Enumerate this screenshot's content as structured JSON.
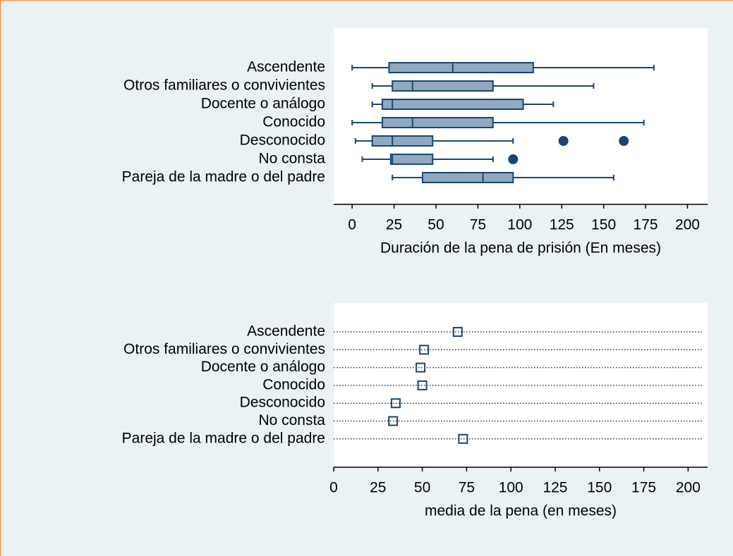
{
  "chart_data": [
    {
      "type": "boxplot",
      "categories": [
        "Ascendente",
        "Otros familiares o convivientes",
        "Docente o análogo",
        "Conocido",
        "Desconocido",
        "No consta",
        "Pareja de la madre o del padre"
      ],
      "boxes": [
        {
          "min": 0,
          "q1": 22,
          "median": 60,
          "q3": 108,
          "max": 180,
          "outliers": []
        },
        {
          "min": 12,
          "q1": 24,
          "median": 36,
          "q3": 84,
          "max": 144,
          "outliers": []
        },
        {
          "min": 12,
          "q1": 18,
          "median": 24,
          "q3": 102,
          "max": 120,
          "outliers": []
        },
        {
          "min": 0,
          "q1": 18,
          "median": 36,
          "q3": 84,
          "max": 174,
          "outliers": []
        },
        {
          "min": 2,
          "q1": 12,
          "median": 24,
          "q3": 48,
          "max": 96,
          "outliers": [
            126,
            162
          ]
        },
        {
          "min": 6,
          "q1": 23,
          "median": 24,
          "q3": 48,
          "max": 84,
          "outliers": [
            96
          ]
        },
        {
          "min": 24,
          "q1": 42,
          "median": 78,
          "q3": 96,
          "max": 156,
          "outliers": []
        }
      ],
      "color": "#90a8c0",
      "xlabel": "Duración de la pena de prisión (En meses)",
      "xlim": [
        -11,
        212
      ],
      "xticks": [
        0,
        25,
        50,
        75,
        100,
        125,
        150,
        175,
        200
      ]
    },
    {
      "type": "dot",
      "categories": [
        "Ascendente",
        "Otros familiares o convivientes",
        "Docente o análogo",
        "Conocido",
        "Desconocido",
        "No consta",
        "Pareja de la madre o del padre"
      ],
      "values": [
        70,
        51,
        49,
        50,
        35,
        33.5,
        73
      ],
      "color": "#1a476f",
      "xlabel": "media de la pena (en meses)",
      "xlim": [
        0,
        211
      ],
      "xticks": [
        0,
        25,
        50,
        75,
        100,
        125,
        150,
        175,
        200
      ]
    }
  ]
}
